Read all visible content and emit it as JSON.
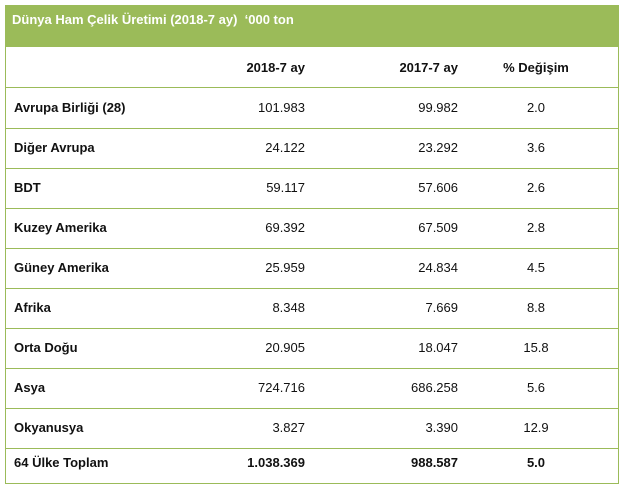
{
  "title": "Dünya Ham Çelik Üretimi (2018-7 ay)  ‘000 ton",
  "columns": [
    "",
    "2018-7 ay",
    "2017-7 ay",
    "% Değişim"
  ],
  "rows": [
    {
      "region": "Avrupa Birliği (28)",
      "y2018": "101.983",
      "y2017": "99.982",
      "change": "2.0"
    },
    {
      "region": "Diğer Avrupa",
      "y2018": "24.122",
      "y2017": "23.292",
      "change": "3.6"
    },
    {
      "region": "BDT",
      "y2018": "59.117",
      "y2017": "57.606",
      "change": "2.6"
    },
    {
      "region": "Kuzey Amerika",
      "y2018": "69.392",
      "y2017": "67.509",
      "change": "2.8"
    },
    {
      "region": "Güney Amerika",
      "y2018": "25.959",
      "y2017": "24.834",
      "change": "4.5"
    },
    {
      "region": "Afrika",
      "y2018": "8.348",
      "y2017": "7.669",
      "change": "8.8"
    },
    {
      "region": "Orta Doğu",
      "y2018": "20.905",
      "y2017": "18.047",
      "change": "15.8"
    },
    {
      "region": "Asya",
      "y2018": "724.716",
      "y2017": "686.258",
      "change": "5.6"
    },
    {
      "region": "Okyanusya",
      "y2018": "3.827",
      "y2017": "3.390",
      "change": "12.9"
    },
    {
      "region": "64 Ülke Toplam",
      "y2018": "1.038.369",
      "y2017": "988.587",
      "change": "5.0"
    }
  ],
  "colors": {
    "header_green": "#9bbb59",
    "border_green": "#9bbb59"
  }
}
